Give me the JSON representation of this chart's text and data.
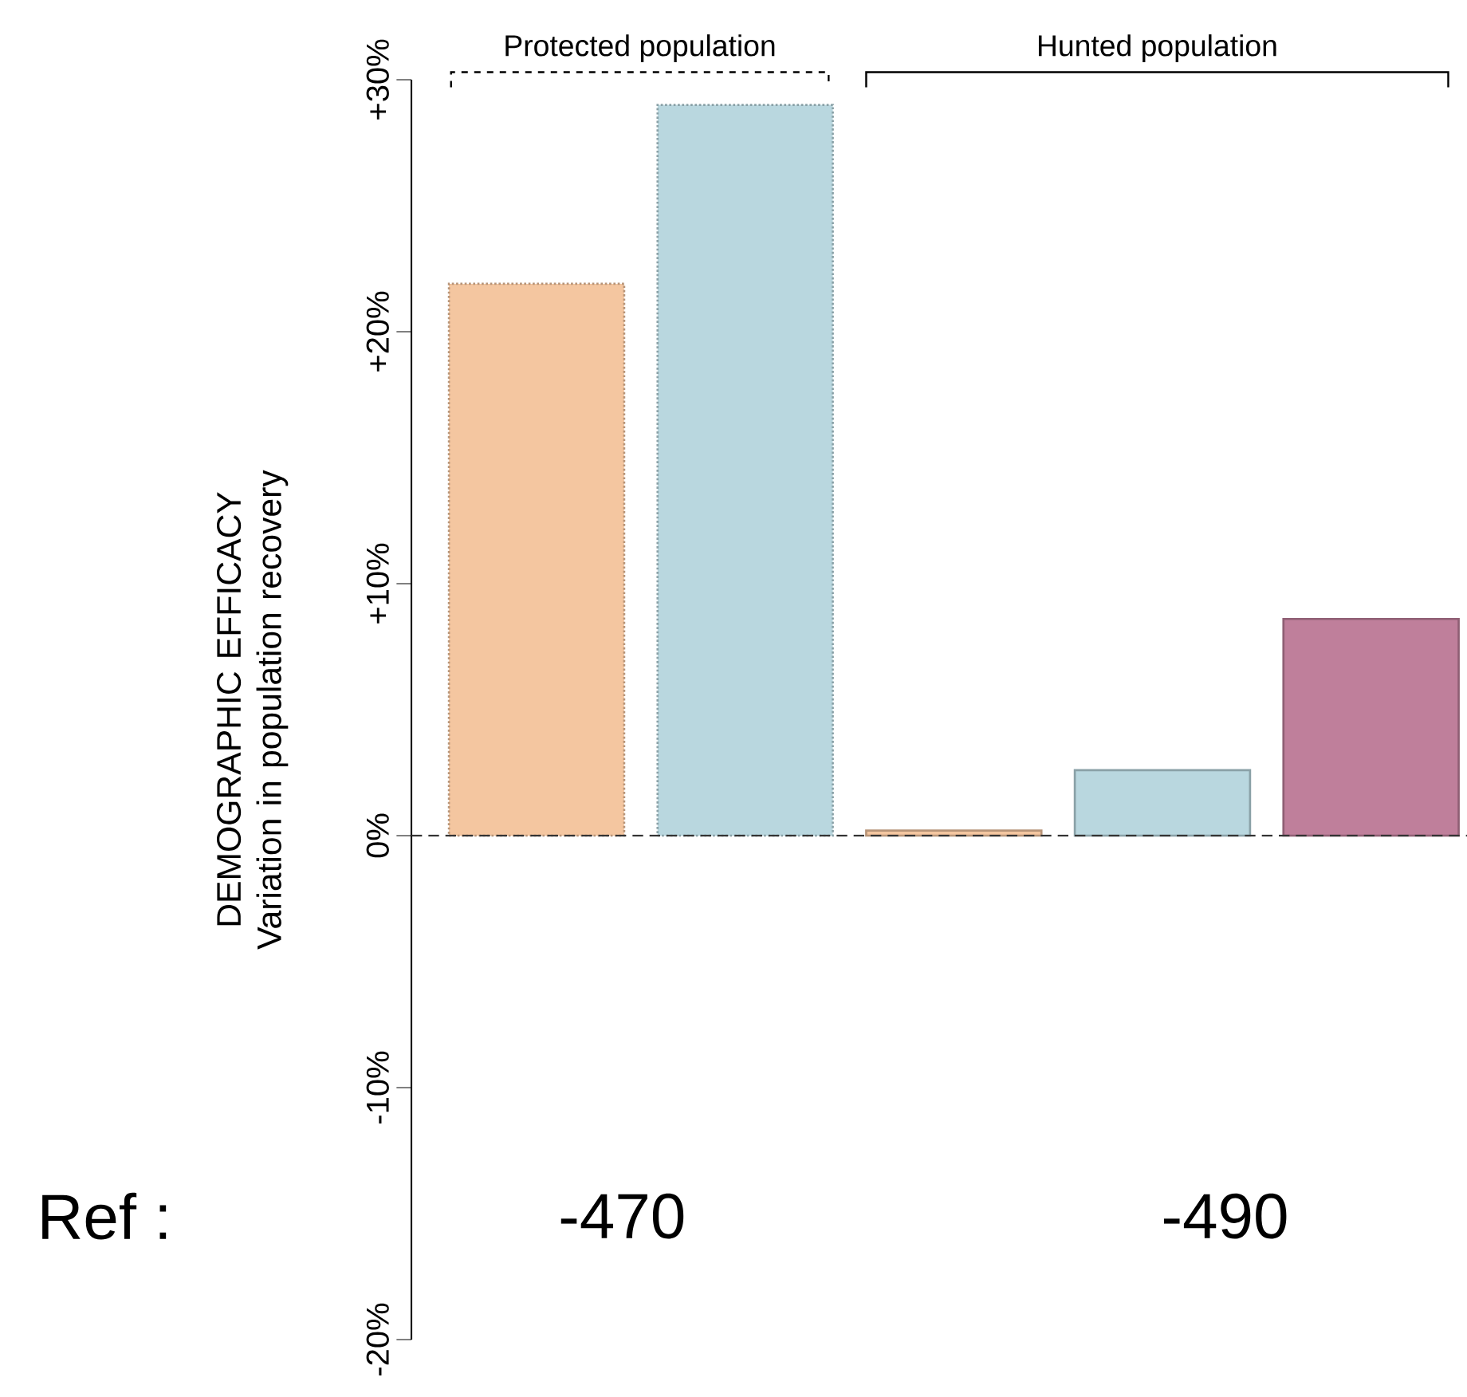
{
  "chart_data": {
    "type": "bar",
    "ylabel": "DEMOGRAPHIC EFFICACY Variation in population recovery",
    "categories": [
      null,
      null,
      null,
      null,
      null
    ],
    "series": [
      {
        "values": [
          21.9,
          29.0,
          null,
          null,
          null
        ],
        "colors": [
          "#f4c6a0",
          "#b9d7df",
          null,
          null,
          null
        ],
        "line_style": "dotted"
      },
      {
        "values": [
          null,
          null,
          0.2,
          2.6,
          8.6
        ],
        "colors": [
          null,
          null,
          "#f4c6a0",
          "#b9d7df",
          "#bf7f9b"
        ],
        "line_style": "solid"
      }
    ],
    "ylim": [
      -20,
      30
    ],
    "yticks": [
      {
        "value": -20,
        "label": "-20%"
      },
      {
        "value": -10,
        "label": "-10%"
      },
      {
        "value": 0,
        "label": "0%"
      },
      {
        "value": 10,
        "label": "+10%"
      },
      {
        "value": 20,
        "label": "+20%"
      },
      {
        "value": 30,
        "label": "+30%"
      }
    ],
    "ref_lines": [
      {
        "axis": "y",
        "value": 0,
        "line_style": "dashed",
        "color": "#333333"
      }
    ],
    "annotations": [
      "Protected population",
      "Hunted population",
      "Ref :",
      "-470",
      "-490"
    ],
    "grid": false
  }
}
